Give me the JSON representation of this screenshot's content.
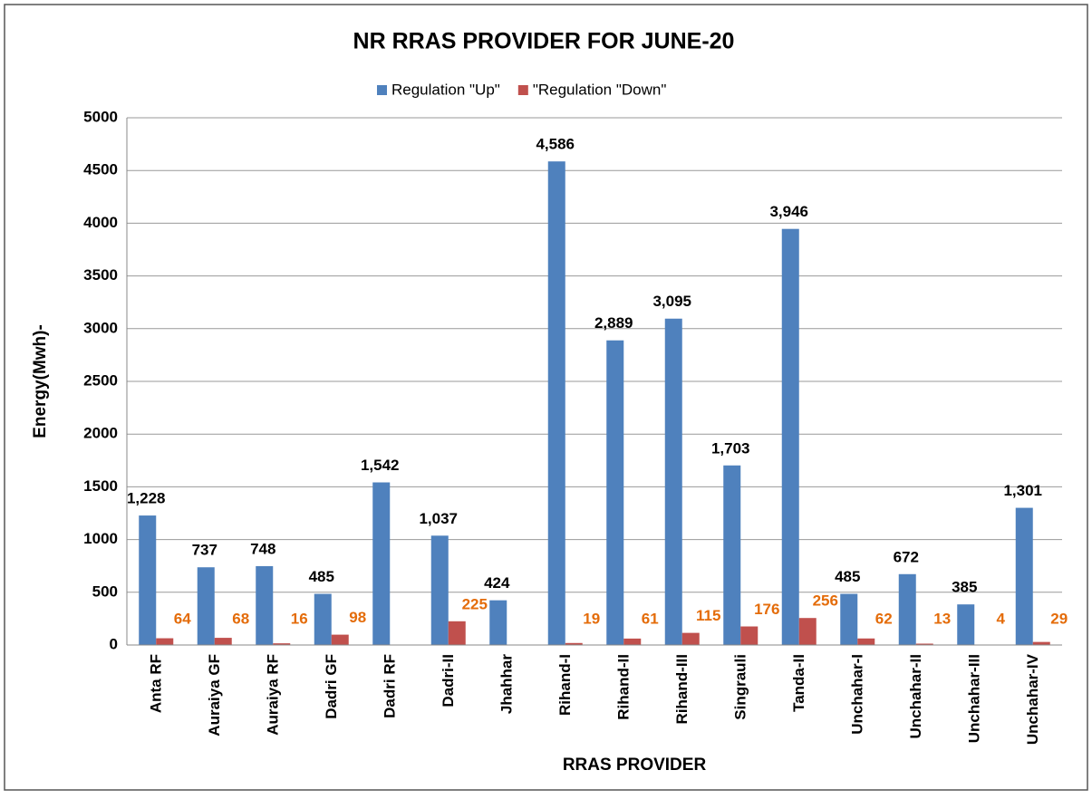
{
  "chart_data": {
    "type": "bar",
    "title": "NR RRAS PROVIDER FOR JUNE-20",
    "x_label": "RRAS PROVIDER",
    "y_label": "Energy(Mwh)-",
    "categories": [
      "Anta RF",
      "Auraiya GF",
      "Auraiya RF",
      "Dadri GF",
      "Dadri RF",
      "Dadri-II",
      "Jhahhar",
      "Rihand-I",
      "Rihand-II",
      "Rihand-III",
      "Singrauli",
      "Tanda-II",
      "Unchahar-I",
      "Unchahar-II",
      "Unchahar-III",
      "Unchahar-IV"
    ],
    "series": [
      {
        "name": "Regulation \"Up\"",
        "color": "#4f81bd",
        "values": [
          1228,
          737,
          748,
          485,
          1542,
          1037,
          424,
          4586,
          2889,
          3095,
          1703,
          3946,
          485,
          672,
          385,
          1301
        ],
        "value_labels": [
          "1,228",
          "737",
          "748",
          "485",
          "1,542",
          "1,037",
          "424",
          "4,586",
          "2,889",
          "3,095",
          "1,703",
          "3,946",
          "485",
          "672",
          "385",
          "1,301"
        ]
      },
      {
        "name": "\"Regulation \"Down\"",
        "color": "#c0504d",
        "values": [
          64,
          68,
          16,
          98,
          null,
          225,
          null,
          19,
          61,
          115,
          176,
          256,
          62,
          13,
          4,
          29
        ]
      }
    ],
    "ylim": [
      0,
      5000
    ],
    "yticks": [
      0,
      500,
      1000,
      1500,
      2000,
      2500,
      3000,
      3500,
      4000,
      4500,
      5000
    ],
    "grid": true,
    "legend": "top"
  }
}
